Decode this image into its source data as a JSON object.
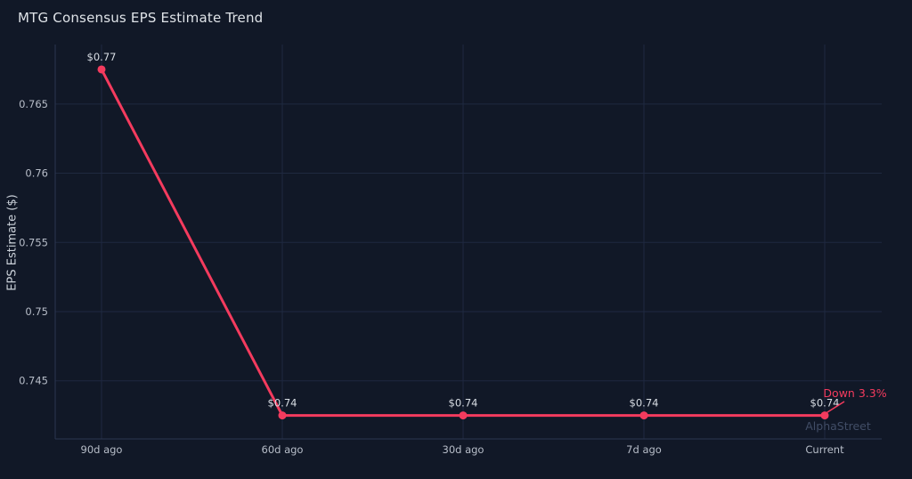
{
  "header": {
    "title": "MTG Consensus EPS Estimate Trend"
  },
  "chart_data": {
    "type": "line",
    "title": "MTG Consensus EPS Estimate Trend",
    "categories": [
      "90d ago",
      "60d ago",
      "30d ago",
      "7d ago",
      "Current"
    ],
    "series": [
      {
        "name": "Consensus EPS Estimate",
        "values": [
          0.7675,
          0.7425,
          0.7425,
          0.7425,
          0.7425
        ],
        "point_labels": [
          "$0.77",
          "$0.74",
          "$0.74",
          "$0.74",
          "$0.74"
        ]
      }
    ],
    "xlabel": "",
    "ylabel": "EPS Estimate ($)",
    "ytick_labels": [
      "0.745",
      "0.75",
      "0.755",
      "0.76",
      "0.765"
    ],
    "yticks": [
      0.745,
      0.75,
      0.755,
      0.76,
      0.765
    ],
    "ylim": [
      0.7408,
      0.7693
    ],
    "grid": true,
    "legend": false,
    "annotation": {
      "text": "Down 3.3%"
    },
    "watermark": "AlphaStreet"
  },
  "colors": {
    "background": "#111827",
    "line": "#f43b5e",
    "annotation": "#f2germ3d5f",
    "grid": "#1f2940",
    "axis": "#2b3650",
    "tick_text": "#b7bdc8",
    "point_label_text": "#d9dee5",
    "watermark_text": "#414d66"
  }
}
